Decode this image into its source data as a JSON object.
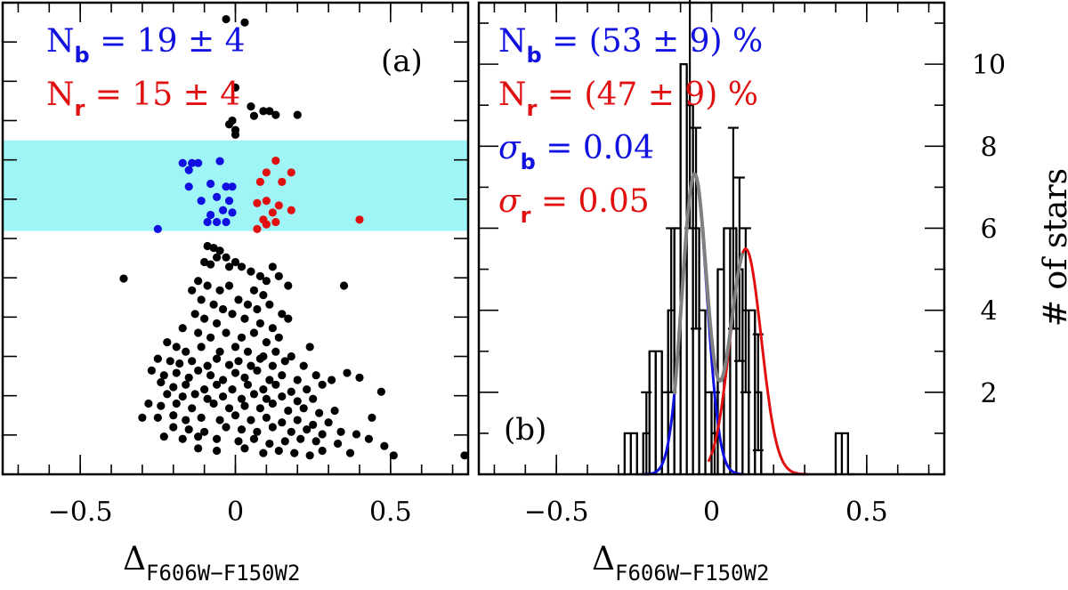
{
  "colors": {
    "blue": "#1010e0",
    "red": "#e01010",
    "band": "#9ff5f5",
    "black": "#000000",
    "gray": "#808080"
  },
  "chart_data": [
    {
      "type": "scatter",
      "panel_label": "(a)",
      "xlabel_main": "Δ",
      "xlabel_sub": "F606W−F150W2",
      "xlim": [
        -0.75,
        0.75
      ],
      "x_ticks": [
        -0.5,
        0,
        0.5
      ],
      "x_tick_labels": [
        "−0.5",
        "0",
        "0.5"
      ],
      "ylim": [
        0,
        1
      ],
      "band_range": [
        0.516,
        0.708
      ],
      "annotations": {
        "nb": {
          "main": "N",
          "sub": "b",
          "text": " = 19 ± 4"
        },
        "nr": {
          "main": "N",
          "sub": "r",
          "text": " = 15 ± 4"
        }
      },
      "series": [
        {
          "name": "blue",
          "points": [
            [
              -0.17,
              0.66
            ],
            [
              -0.15,
              0.645
            ],
            [
              -0.14,
              0.66
            ],
            [
              -0.12,
              0.66
            ],
            [
              -0.15,
              0.61
            ],
            [
              -0.08,
              0.616
            ],
            [
              -0.05,
              0.664
            ],
            [
              -0.03,
              0.61
            ],
            [
              -0.11,
              0.58
            ],
            [
              -0.08,
              0.55
            ],
            [
              -0.06,
              0.588
            ],
            [
              -0.04,
              0.56
            ],
            [
              -0.02,
              0.58
            ],
            [
              -0.09,
              0.535
            ],
            [
              -0.06,
              0.535
            ],
            [
              -0.03,
              0.535
            ],
            [
              -0.01,
              0.555
            ],
            [
              -0.25,
              0.52
            ],
            [
              -0.01,
              0.61
            ]
          ]
        },
        {
          "name": "red",
          "points": [
            [
              0.13,
              0.665
            ],
            [
              0.1,
              0.64
            ],
            [
              0.08,
              0.62
            ],
            [
              0.15,
              0.62
            ],
            [
              0.18,
              0.64
            ],
            [
              0.07,
              0.575
            ],
            [
              0.1,
              0.58
            ],
            [
              0.14,
              0.57
            ],
            [
              0.18,
              0.56
            ],
            [
              0.12,
              0.555
            ],
            [
              0.09,
              0.54
            ],
            [
              0.13,
              0.535
            ],
            [
              0.07,
              0.52
            ],
            [
              0.1,
              0.53
            ],
            [
              0.4,
              0.54
            ]
          ]
        },
        {
          "name": "black",
          "points": [
            [
              -0.03,
              0.965
            ],
            [
              0.03,
              0.958
            ],
            [
              0.0,
              0.82
            ],
            [
              0.05,
              0.78
            ],
            [
              0.09,
              0.77
            ],
            [
              0.11,
              0.77
            ],
            [
              0.13,
              0.762
            ],
            [
              0.2,
              0.762
            ],
            [
              0.06,
              0.76
            ],
            [
              -0.02,
              0.742
            ],
            [
              -0.01,
              0.75
            ],
            [
              0.0,
              0.72
            ],
            [
              0.0,
              0.73
            ],
            [
              -0.09,
              0.484
            ],
            [
              -0.07,
              0.48
            ],
            [
              -0.05,
              0.474
            ],
            [
              -0.06,
              0.46
            ],
            [
              -0.03,
              0.46
            ],
            [
              -0.1,
              0.45
            ],
            [
              -0.08,
              0.445
            ],
            [
              -0.02,
              0.44
            ],
            [
              0.0,
              0.45
            ],
            [
              0.02,
              0.44
            ],
            [
              0.05,
              0.43
            ],
            [
              0.08,
              0.42
            ],
            [
              0.1,
              0.41
            ],
            [
              0.12,
              0.44
            ],
            [
              0.14,
              0.42
            ],
            [
              0.17,
              0.4
            ],
            [
              -0.36,
              0.415
            ],
            [
              0.35,
              0.4
            ],
            [
              -0.12,
              0.41
            ],
            [
              -0.14,
              0.39
            ],
            [
              -0.09,
              0.4
            ],
            [
              -0.05,
              0.39
            ],
            [
              -0.02,
              0.4
            ],
            [
              0.06,
              0.39
            ],
            [
              0.09,
              0.38
            ],
            [
              -0.11,
              0.37
            ],
            [
              -0.07,
              0.36
            ],
            [
              -0.04,
              0.35
            ],
            [
              0.01,
              0.37
            ],
            [
              0.04,
              0.36
            ],
            [
              0.07,
              0.35
            ],
            [
              0.11,
              0.36
            ],
            [
              0.15,
              0.34
            ],
            [
              -0.13,
              0.34
            ],
            [
              -0.1,
              0.33
            ],
            [
              -0.06,
              0.32
            ],
            [
              -0.01,
              0.34
            ],
            [
              0.03,
              0.33
            ],
            [
              0.08,
              0.32
            ],
            [
              0.12,
              0.31
            ],
            [
              0.17,
              0.33
            ],
            [
              -0.17,
              0.31
            ],
            [
              -0.12,
              0.3
            ],
            [
              -0.08,
              0.29
            ],
            [
              -0.03,
              0.3
            ],
            [
              0.02,
              0.29
            ],
            [
              0.06,
              0.3
            ],
            [
              0.1,
              0.28
            ],
            [
              0.14,
              0.29
            ],
            [
              -0.22,
              0.28
            ],
            [
              -0.19,
              0.27
            ],
            [
              -0.16,
              0.26
            ],
            [
              -0.11,
              0.27
            ],
            [
              -0.05,
              0.26
            ],
            [
              0.0,
              0.27
            ],
            [
              0.04,
              0.26
            ],
            [
              0.09,
              0.25
            ],
            [
              0.13,
              0.26
            ],
            [
              0.18,
              0.25
            ],
            [
              0.24,
              0.27
            ],
            [
              -0.25,
              0.245
            ],
            [
              -0.21,
              0.24
            ],
            [
              -0.18,
              0.235
            ],
            [
              -0.14,
              0.24
            ],
            [
              -0.09,
              0.23
            ],
            [
              -0.06,
              0.245
            ],
            [
              -0.02,
              0.232
            ],
            [
              0.01,
              0.24
            ],
            [
              0.05,
              0.23
            ],
            [
              0.08,
              0.245
            ],
            [
              0.12,
              0.23
            ],
            [
              0.16,
              0.24
            ],
            [
              0.22,
              0.23
            ],
            [
              -0.27,
              0.22
            ],
            [
              -0.23,
              0.21
            ],
            [
              -0.19,
              0.215
            ],
            [
              -0.15,
              0.205
            ],
            [
              -0.12,
              0.22
            ],
            [
              -0.08,
              0.21
            ],
            [
              -0.04,
              0.2
            ],
            [
              0.0,
              0.215
            ],
            [
              0.03,
              0.205
            ],
            [
              0.07,
              0.22
            ],
            [
              0.11,
              0.2
            ],
            [
              0.15,
              0.21
            ],
            [
              0.2,
              0.2
            ],
            [
              0.26,
              0.21
            ],
            [
              0.31,
              0.2
            ],
            [
              0.36,
              0.215
            ],
            [
              0.4,
              0.205
            ],
            [
              -0.24,
              0.195
            ],
            [
              -0.2,
              0.185
            ],
            [
              -0.16,
              0.19
            ],
            [
              -0.1,
              0.18
            ],
            [
              -0.06,
              0.19
            ],
            [
              -0.01,
              0.18
            ],
            [
              0.04,
              0.19
            ],
            [
              0.09,
              0.18
            ],
            [
              0.13,
              0.19
            ],
            [
              0.18,
              0.175
            ],
            [
              0.23,
              0.18
            ],
            [
              0.28,
              0.19
            ],
            [
              -0.22,
              0.17
            ],
            [
              -0.17,
              0.165
            ],
            [
              -0.13,
              0.17
            ],
            [
              -0.09,
              0.16
            ],
            [
              -0.04,
              0.165
            ],
            [
              0.02,
              0.16
            ],
            [
              0.06,
              0.17
            ],
            [
              0.1,
              0.16
            ],
            [
              0.15,
              0.165
            ],
            [
              0.2,
              0.155
            ],
            [
              0.25,
              0.16
            ],
            [
              -0.28,
              0.15
            ],
            [
              -0.24,
              0.145
            ],
            [
              -0.19,
              0.15
            ],
            [
              -0.14,
              0.14
            ],
            [
              -0.07,
              0.15
            ],
            [
              -0.02,
              0.14
            ],
            [
              0.03,
              0.145
            ],
            [
              0.08,
              0.14
            ],
            [
              0.12,
              0.15
            ],
            [
              0.17,
              0.135
            ],
            [
              0.22,
              0.14
            ],
            [
              0.27,
              0.13
            ],
            [
              0.32,
              0.135
            ],
            [
              0.47,
              0.175
            ],
            [
              -0.3,
              0.12
            ],
            [
              -0.25,
              0.12
            ],
            [
              -0.2,
              0.125
            ],
            [
              -0.16,
              0.115
            ],
            [
              -0.11,
              0.12
            ],
            [
              -0.05,
              0.115
            ],
            [
              0.0,
              0.125
            ],
            [
              0.05,
              0.115
            ],
            [
              0.1,
              0.12
            ],
            [
              0.15,
              0.11
            ],
            [
              0.2,
              0.115
            ],
            [
              0.25,
              0.105
            ],
            [
              0.3,
              0.11
            ],
            [
              0.44,
              0.12
            ],
            [
              -0.2,
              0.1
            ],
            [
              -0.15,
              0.095
            ],
            [
              -0.1,
              0.09
            ],
            [
              -0.03,
              0.1
            ],
            [
              0.02,
              0.095
            ],
            [
              0.07,
              0.09
            ],
            [
              0.12,
              0.1
            ],
            [
              0.18,
              0.09
            ],
            [
              0.23,
              0.095
            ],
            [
              0.28,
              0.085
            ],
            [
              0.34,
              0.09
            ],
            [
              0.39,
              0.085
            ],
            [
              -0.23,
              0.08
            ],
            [
              -0.17,
              0.075
            ],
            [
              -0.12,
              0.08
            ],
            [
              -0.06,
              0.075
            ],
            [
              0.01,
              0.07
            ],
            [
              0.06,
              0.075
            ],
            [
              0.11,
              0.065
            ],
            [
              0.16,
              0.07
            ],
            [
              0.21,
              0.075
            ],
            [
              0.26,
              0.07
            ],
            [
              0.33,
              0.065
            ],
            [
              0.43,
              0.075
            ],
            [
              -0.12,
              0.055
            ],
            [
              -0.06,
              0.05
            ],
            [
              0.03,
              0.055
            ],
            [
              0.09,
              0.045
            ],
            [
              0.14,
              0.05
            ],
            [
              0.19,
              0.045
            ],
            [
              0.28,
              0.05
            ],
            [
              0.37,
              0.045
            ],
            [
              0.48,
              0.06
            ],
            [
              0.51,
              0.04
            ],
            [
              0.24,
              0.04
            ],
            [
              0.75,
              0.04
            ]
          ]
        }
      ]
    },
    {
      "type": "bar",
      "panel_label": "(b)",
      "xlabel_main": "Δ",
      "xlabel_sub": "F606W−F150W2",
      "ylabel": "# of stars",
      "xlim": [
        -0.75,
        0.75
      ],
      "x_ticks": [
        -0.5,
        0,
        0.5
      ],
      "x_tick_labels": [
        "−0.5",
        "0",
        "0.5"
      ],
      "ylim": [
        0,
        11.5
      ],
      "y_ticks": [
        2,
        4,
        6,
        8,
        10
      ],
      "y_tick_labels": [
        "2",
        "4",
        "6",
        "8",
        "10"
      ],
      "annotations": {
        "nb": {
          "main": "N",
          "sub": "b",
          "text": " = (53 ± 9) %"
        },
        "nr": {
          "main": "N",
          "sub": "r",
          "text": " = (47 ± 9) %"
        },
        "sb": {
          "main": "σ",
          "sub": "b",
          "text": " = 0.04"
        },
        "sr": {
          "main": "σ",
          "sub": "r",
          "text": " = 0.05"
        }
      },
      "bin_width": 0.02,
      "bin_start": -0.3,
      "counts": [
        0,
        1,
        1,
        0,
        1,
        3,
        3,
        2,
        4,
        6,
        10,
        9,
        6,
        4,
        2,
        1,
        5,
        6,
        6,
        5,
        4,
        4,
        2,
        0,
        0,
        0,
        0,
        0,
        0,
        0,
        0,
        0,
        0,
        0,
        0,
        1,
        1,
        0
      ],
      "error_bins": [
        -0.21,
        -0.13,
        -0.07,
        -0.05,
        0.01,
        0.07,
        0.09,
        0.11,
        0.15,
        0.19,
        0.37
      ],
      "fit": {
        "blue": {
          "mu": -0.055,
          "sigma": 0.04,
          "amp": 7.3
        },
        "red": {
          "mu": 0.11,
          "sigma": 0.05,
          "amp": 5.5
        }
      }
    }
  ]
}
